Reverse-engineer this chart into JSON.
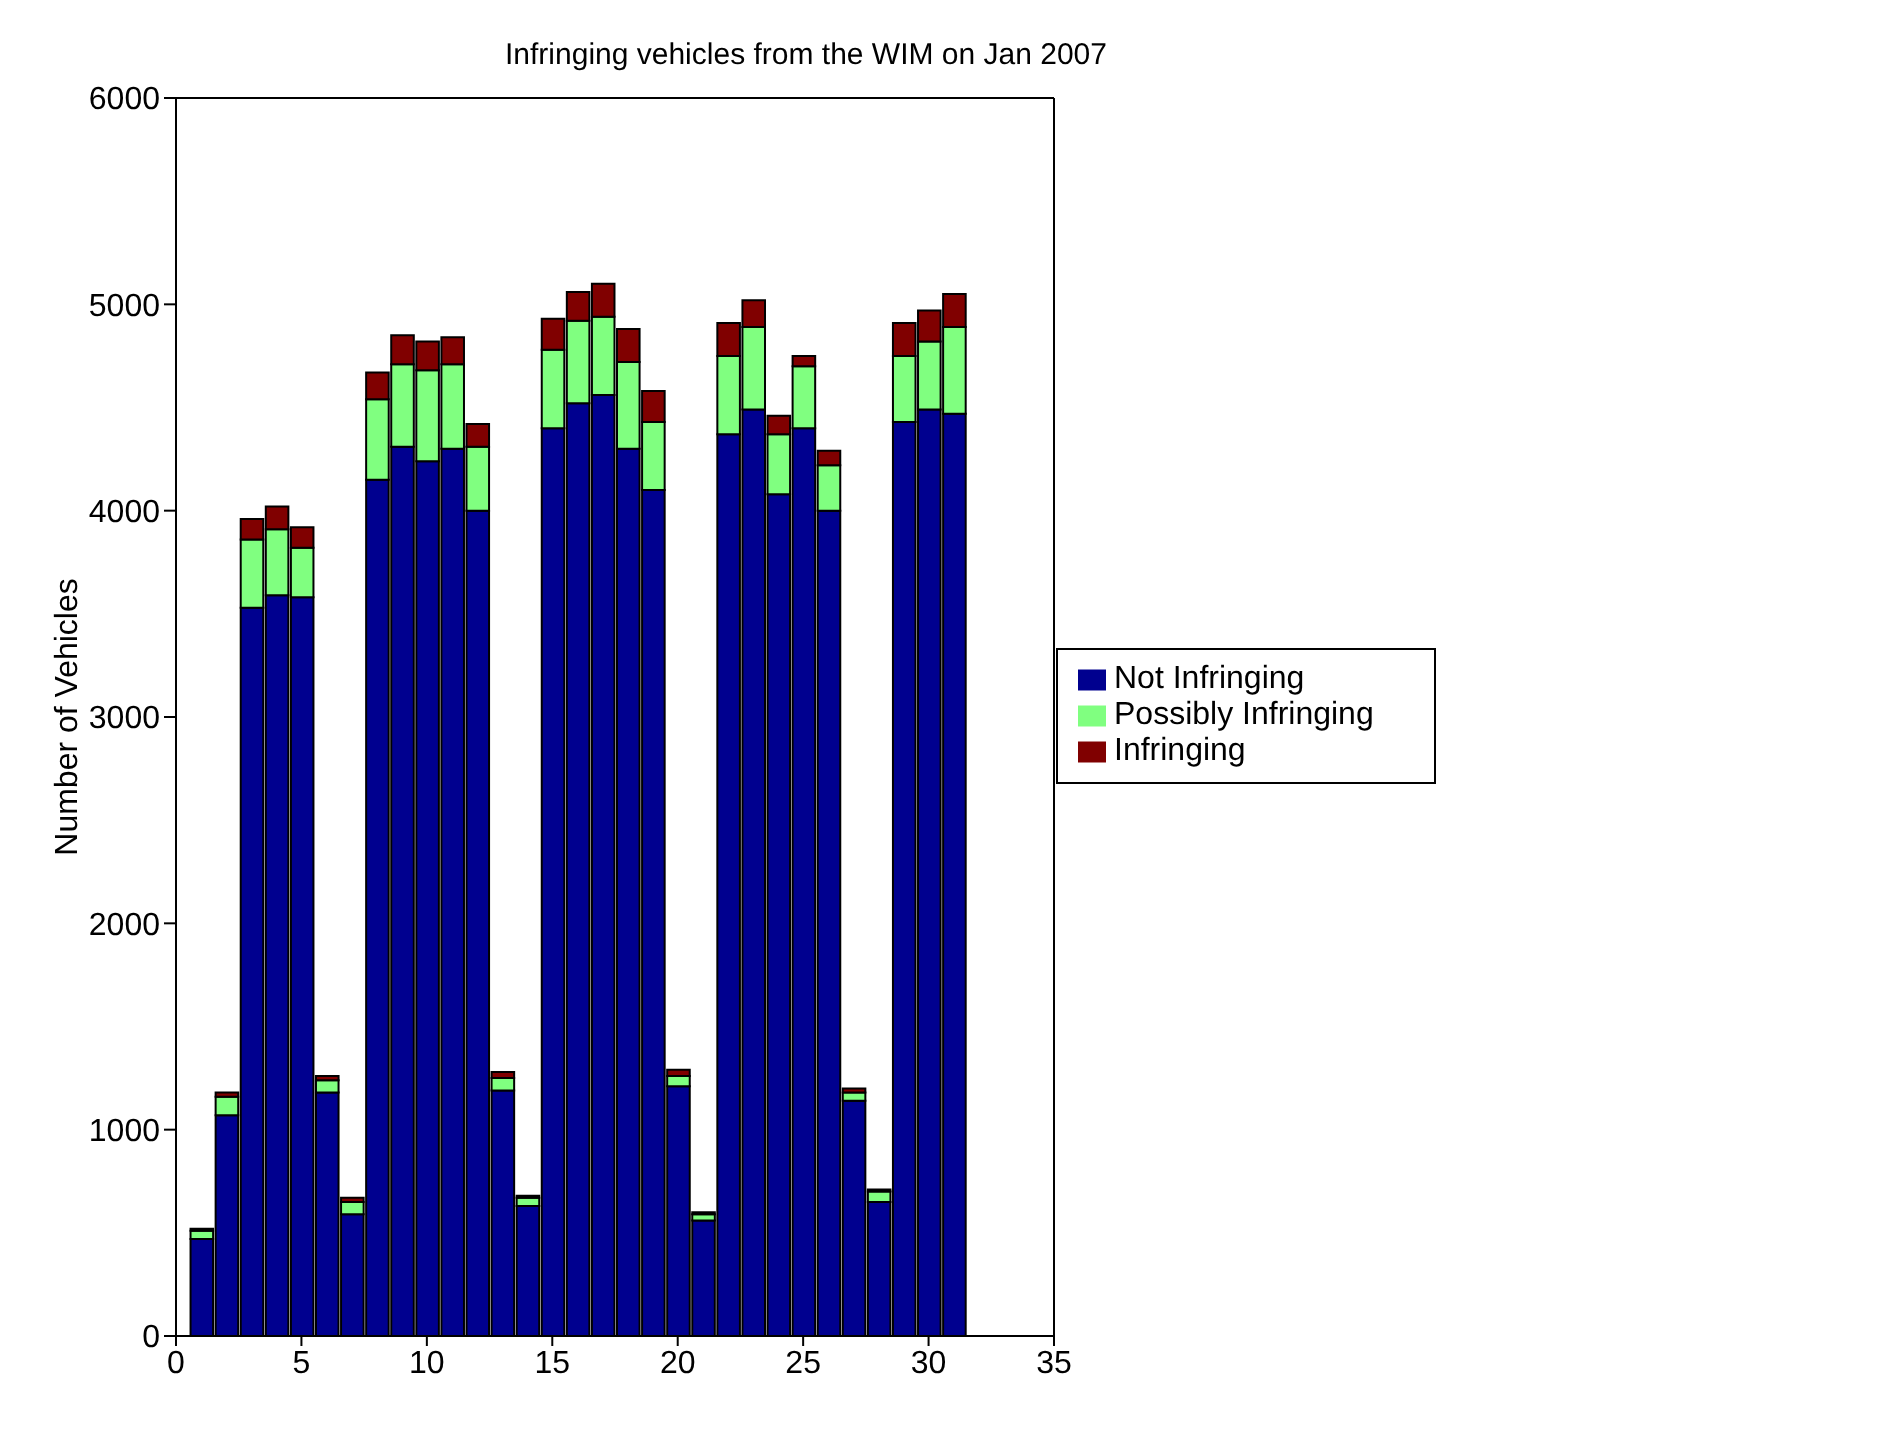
{
  "chart_data": {
    "type": "bar",
    "title": "Infringing vehicles from the WIM on Jan 2007",
    "ylabel": "Number of Vehicles",
    "x": [
      1,
      2,
      3,
      4,
      5,
      6,
      7,
      8,
      9,
      10,
      11,
      12,
      13,
      14,
      15,
      16,
      17,
      18,
      19,
      20,
      21,
      22,
      23,
      24,
      25,
      26,
      27,
      28,
      29,
      30,
      31
    ],
    "stacked": true,
    "series": [
      {
        "name": "Not Infringing",
        "color": "#00008f",
        "values": [
          470,
          1070,
          3530,
          3590,
          3580,
          1180,
          590,
          4150,
          4310,
          4240,
          4300,
          4000,
          1190,
          630,
          4400,
          4520,
          4560,
          4300,
          4100,
          1210,
          560,
          4370,
          4490,
          4080,
          4400,
          4000,
          1140,
          650,
          4430,
          4490,
          4470
        ]
      },
      {
        "name": "Possibly Infringing",
        "color": "#80ff80",
        "values": [
          40,
          90,
          330,
          320,
          240,
          60,
          60,
          390,
          400,
          440,
          410,
          310,
          60,
          40,
          380,
          400,
          380,
          420,
          330,
          50,
          30,
          380,
          400,
          290,
          300,
          220,
          40,
          50,
          320,
          330,
          420
        ]
      },
      {
        "name": "Infringing",
        "color": "#800000",
        "values": [
          10,
          20,
          100,
          110,
          100,
          20,
          20,
          130,
          140,
          140,
          130,
          110,
          30,
          10,
          150,
          140,
          160,
          160,
          150,
          30,
          10,
          160,
          130,
          90,
          50,
          70,
          20,
          10,
          160,
          150,
          160
        ]
      }
    ],
    "xlim": [
      0,
      35
    ],
    "xticks": [
      0,
      5,
      10,
      15,
      20,
      25,
      30,
      35
    ],
    "ylim": [
      0,
      6000
    ],
    "yticks": [
      0,
      1000,
      2000,
      3000,
      4000,
      5000,
      6000
    ],
    "legend": "right"
  }
}
